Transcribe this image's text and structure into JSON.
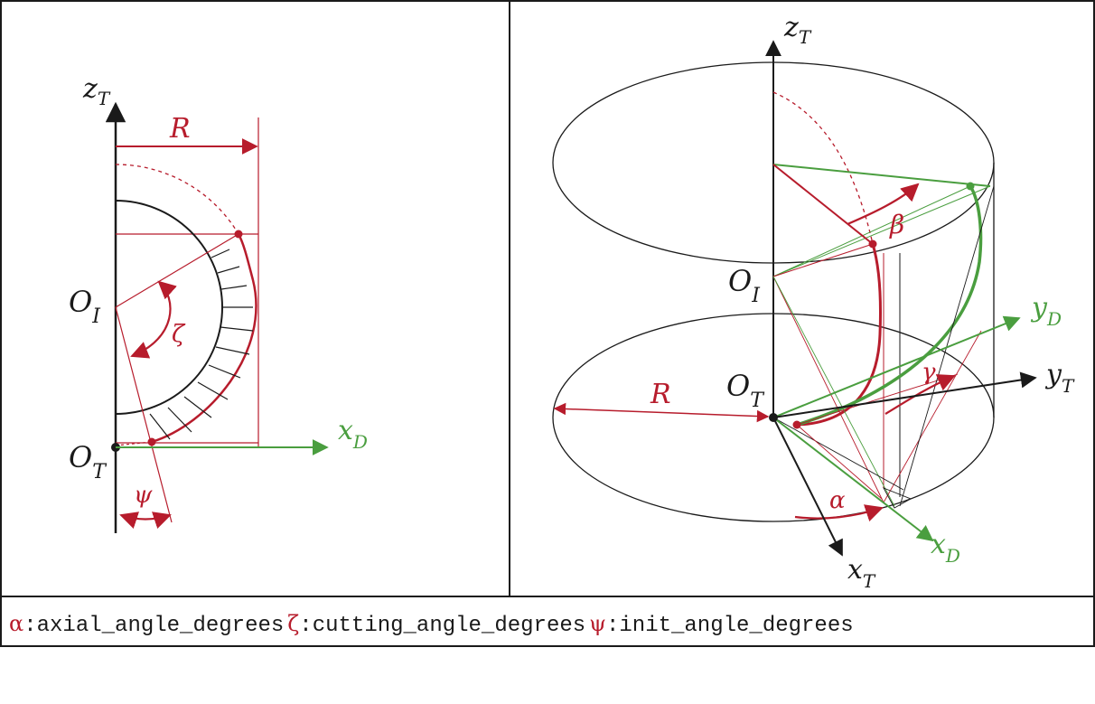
{
  "colors": {
    "red": "#b71c2c",
    "green": "#4a9e3f",
    "black": "#1a1a1a"
  },
  "left_panel": {
    "z_axis": {
      "main": "z",
      "sub": "T"
    },
    "radius_label": "R",
    "origin_inner": {
      "main": "O",
      "sub": "I"
    },
    "origin_tool": {
      "main": "O",
      "sub": "T"
    },
    "x_axis": {
      "main": "x",
      "sub": "D"
    },
    "zeta_symbol": "ζ",
    "psi_symbol": "ψ"
  },
  "right_panel": {
    "z_axis": {
      "main": "z",
      "sub": "T"
    },
    "beta_symbol": "β",
    "origin_inner": {
      "main": "O",
      "sub": "I"
    },
    "y_axis_d": {
      "main": "y",
      "sub": "D"
    },
    "radius_label": "R",
    "origin_tool": {
      "main": "O",
      "sub": "T"
    },
    "gamma_symbol": "γ",
    "y_axis_t": {
      "main": "y",
      "sub": "T"
    },
    "alpha_symbol": "α",
    "x_axis_d": {
      "main": "x",
      "sub": "D"
    },
    "x_axis_t": {
      "main": "x",
      "sub": "T"
    }
  },
  "legend": {
    "items": [
      {
        "symbol": "α",
        "label": "axial_angle_degrees"
      },
      {
        "symbol": "ζ",
        "label": "cutting_angle_degrees"
      },
      {
        "symbol": "ψ",
        "label": "init_angle_degrees"
      }
    ]
  }
}
